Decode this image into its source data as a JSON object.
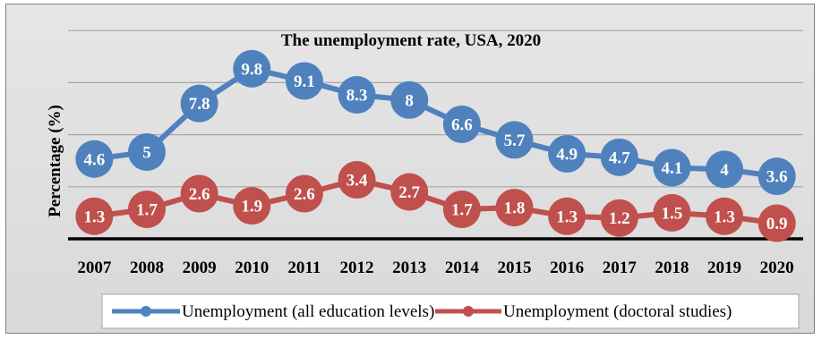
{
  "chart_data": {
    "type": "line",
    "title": "The unemployment rate, USA, 2020",
    "xlabel": "",
    "ylabel": "Percentage (%)",
    "ylim": [
      0,
      12
    ],
    "grid": true,
    "legend_position": "bottom",
    "categories": [
      "2007",
      "2008",
      "2009",
      "2010",
      "2011",
      "2012",
      "2013",
      "2014",
      "2015",
      "2016",
      "2017",
      "2018",
      "2019",
      "2020"
    ],
    "series": [
      {
        "name": "Unemployment (all education levels)",
        "color": "#4f81bd",
        "values": [
          4.6,
          5,
          7.8,
          9.8,
          9.1,
          8.3,
          8,
          6.6,
          5.7,
          4.9,
          4.7,
          4.1,
          4,
          3.6
        ],
        "labels": [
          "4.6",
          "5",
          "7.8",
          "9.8",
          "9.1",
          "8.3",
          "8",
          "6.6",
          "5.7",
          "4.9",
          "4.7",
          "4.1",
          "4",
          "3.6"
        ]
      },
      {
        "name": "Unemployment (doctoral studies)",
        "color": "#c0504d",
        "values": [
          1.3,
          1.7,
          2.6,
          1.9,
          2.6,
          3.4,
          2.7,
          1.7,
          1.8,
          1.3,
          1.2,
          1.5,
          1.3,
          0.9
        ],
        "labels": [
          "1.3",
          "1.7",
          "2.6",
          "1.9",
          "2.6",
          "3.4",
          "2.7",
          "1.7",
          "1.8",
          "1.3",
          "1.2",
          "1.5",
          "1.3",
          "0.9"
        ]
      }
    ]
  }
}
